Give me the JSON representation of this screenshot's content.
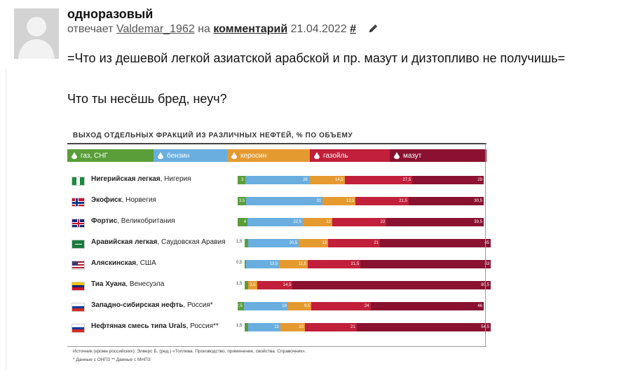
{
  "comment": {
    "author": "одноразовый",
    "replies_prefix": "отвечает",
    "reply_to_user": "Valdemar_1962",
    "on_word": "на",
    "comment_link": "комментарий",
    "date": "21.04.2022",
    "hash": "#",
    "quote": "=Что из дешевой легкой азиатской арабской и пр. мазут и дизтопливо не получишь=",
    "reply": "Что ты несёшь бред, неуч?"
  },
  "icons": {
    "avatar": "person-silhouette-icon",
    "edit": "pencil-icon",
    "legend": "droplet-icon"
  },
  "colors": {
    "gas": "#5a9e3a",
    "benzin": "#6aaee0",
    "kerosin": "#e59a2f",
    "gasoil": "#c11f3a",
    "mazut": "#8a1230"
  },
  "chart_data": {
    "type": "bar",
    "title": "ВЫХОД ОТДЕЛЬНЫХ ФРАКЦИЙ ИЗ РАЗЛИЧНЫХ НЕФТЕЙ, % ПО ОБЪЕМУ",
    "stacked": true,
    "categories": [
      {
        "name": "Нигерийская легкая",
        "country": "Нигерия",
        "flag": "nigeria"
      },
      {
        "name": "Экофиск",
        "country": "Норвегия",
        "flag": "norway"
      },
      {
        "name": "Фортис",
        "country": "Великобритания",
        "flag": "uk"
      },
      {
        "name": "Аравийская легкая",
        "country": "Саудовская Аравия",
        "flag": "saudi"
      },
      {
        "name": "Аляскинская",
        "country": "США",
        "flag": "usa"
      },
      {
        "name": "Тиа Хуана",
        "country": "Венесуэла",
        "flag": "venezuela"
      },
      {
        "name": "Западно-сибирская нефть",
        "country": "Россия*",
        "flag": "russia"
      },
      {
        "name": "Нефтяная смесь типа Urals",
        "country": "Россия**",
        "flag": "russia"
      }
    ],
    "series": [
      {
        "name": "газ, СНГ",
        "color_key": "gas",
        "values": [
          3,
          3.5,
          4,
          1.5,
          0.5,
          1.5,
          2.5,
          1.5
        ],
        "labels": [
          "3",
          "3,5",
          "4",
          "1,5",
          "0,5",
          "1,5",
          "2,5",
          "1,5"
        ]
      },
      {
        "name": "бензин",
        "color_key": "benzin",
        "values": [
          26,
          31,
          22.5,
          20.5,
          13.5,
          0,
          18,
          13
        ],
        "labels": [
          "26",
          "31",
          "22,5",
          "20,5",
          "13,5",
          "",
          "18",
          "13"
        ]
      },
      {
        "name": "керосин",
        "color_key": "kerosin",
        "values": [
          14.5,
          13.5,
          12,
          12,
          11.5,
          3.5,
          9.5,
          10
        ],
        "labels": [
          "14,5",
          "13,5",
          "12",
          "12",
          "11,5",
          "3,5",
          "9,5",
          "10"
        ]
      },
      {
        "name": "газойль",
        "color_key": "gasoil",
        "values": [
          27.5,
          21.5,
          22,
          21,
          21.5,
          14.5,
          24,
          21
        ],
        "labels": [
          "27,5",
          "21,5",
          "22",
          "21",
          "21,5",
          "14,5",
          "24",
          "21"
        ]
      },
      {
        "name": "мазут",
        "color_key": "mazut",
        "values": [
          29,
          30.5,
          39.5,
          45,
          53,
          80.5,
          46,
          54.5
        ],
        "labels": [
          "29",
          "30,5",
          "39,5",
          "45",
          "53",
          "80,5",
          "46",
          "54,5"
        ]
      }
    ],
    "source": "Источник (кроме российских): Элверс Б. (ред.) «Топлива. Производство, применение, свойства. Справочник».",
    "footnote": "* Данные с ОНПЗ     ** Данные с МНПЗ"
  }
}
